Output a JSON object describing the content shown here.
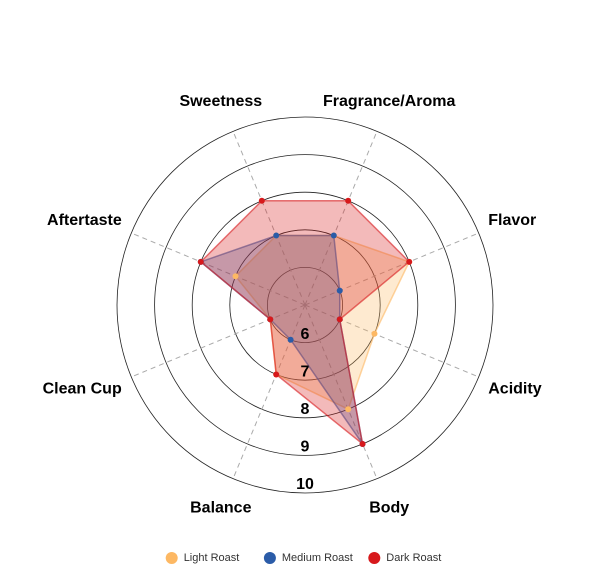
{
  "chart_data": {
    "type": "radar",
    "categories": [
      "Fragrance/Aroma",
      "Flavor",
      "Acidity",
      "Body",
      "Balance",
      "Clean Cup",
      "Aftertaste",
      "Sweetness"
    ],
    "series": [
      {
        "name": "Light Roast",
        "color": "#fdb863",
        "values": [
          7.0,
          8.0,
          7.0,
          8.0,
          7.0,
          6.0,
          7.0,
          7.0
        ]
      },
      {
        "name": "Medium Roast",
        "color": "#2b5ca8",
        "values": [
          7.0,
          6.0,
          6.0,
          9.0,
          6.0,
          6.0,
          8.0,
          7.0
        ]
      },
      {
        "name": "Dark Roast",
        "color": "#d7191c",
        "values": [
          8.0,
          8.0,
          6.0,
          9.0,
          7.0,
          6.0,
          8.0,
          8.0
        ]
      }
    ],
    "rlim": [
      5,
      10
    ],
    "rticks": [
      6,
      7,
      8,
      9,
      10
    ],
    "legend": "bottom"
  }
}
